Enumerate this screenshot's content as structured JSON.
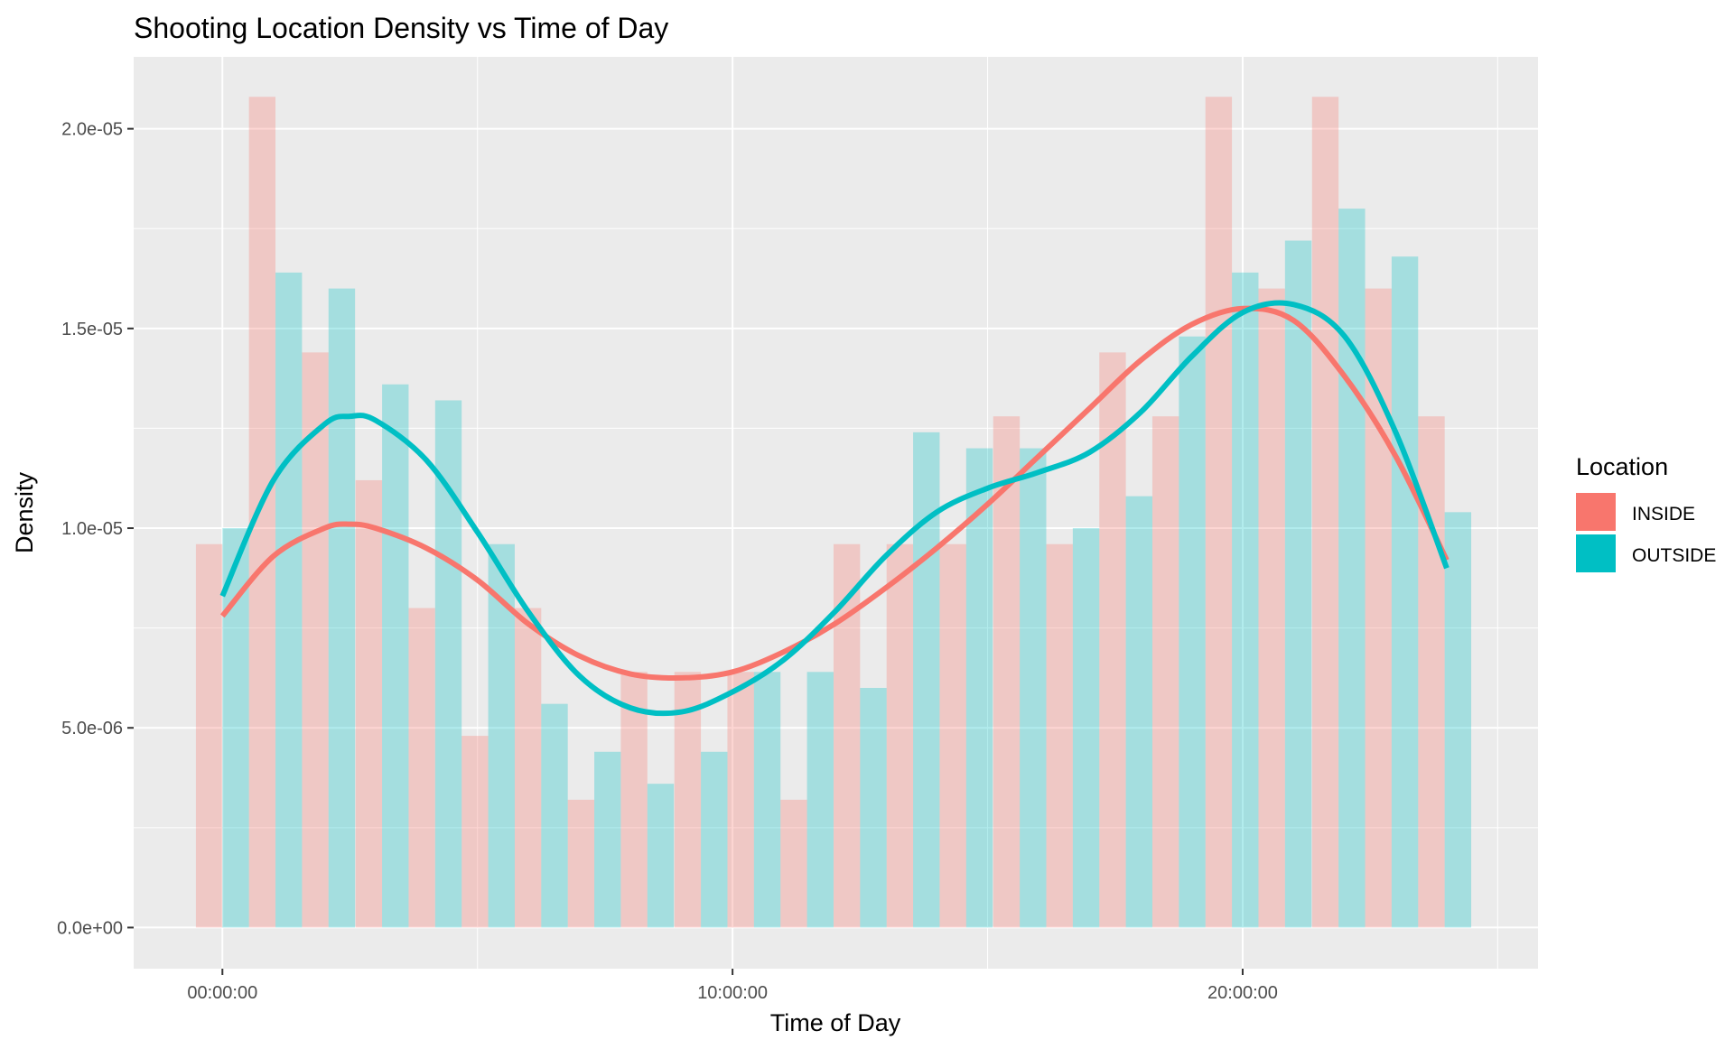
{
  "chart_data": {
    "type": "bar",
    "title": "Shooting Location Density vs Time of Day",
    "xlabel": "Time of Day",
    "ylabel": "Density",
    "xlim": [
      -1.74,
      25.79
    ],
    "ylim": [
      -1.03e-06,
      2.18e-05
    ],
    "x_ticks": [
      {
        "value": 0,
        "label": "00:00:00"
      },
      {
        "value": 10,
        "label": "10:00:00"
      },
      {
        "value": 20,
        "label": "20:00:00"
      }
    ],
    "x_minor_ticks": [
      5,
      15,
      25
    ],
    "y_ticks": [
      {
        "value": 0,
        "label": "0.0e+00"
      },
      {
        "value": 5e-06,
        "label": "5.0e-06"
      },
      {
        "value": 1e-05,
        "label": "1.0e-05"
      },
      {
        "value": 1.5e-05,
        "label": "1.5e-05"
      },
      {
        "value": 2e-05,
        "label": "2.0e-05"
      }
    ],
    "y_minor_ticks": [
      2.5e-06,
      7.5e-06,
      1.25e-05,
      1.75e-05
    ],
    "grid": true,
    "legend_title": "Location",
    "legend_position": "right",
    "bar_centers": [
      0,
      1.04,
      2.08,
      3.13,
      4.17,
      5.21,
      6.25,
      7.29,
      8.33,
      9.38,
      10.42,
      11.46,
      12.5,
      13.54,
      14.58,
      15.63,
      16.67,
      17.71,
      18.75,
      19.79,
      20.83,
      21.88,
      22.92,
      23.96
    ],
    "bar_width": 1.04,
    "series": [
      {
        "name": "INSIDE",
        "color": "#F8766D",
        "bar_color": "#F8766D",
        "values": [
          9.6e-06,
          2.08e-05,
          1.44e-05,
          1.12e-05,
          8e-06,
          4.8e-06,
          8e-06,
          3.2e-06,
          6.4e-06,
          6.4e-06,
          6.4e-06,
          3.2e-06,
          9.6e-06,
          9.6e-06,
          9.6e-06,
          1.28e-05,
          9.6e-06,
          1.44e-05,
          1.28e-05,
          2.08e-05,
          1.6e-05,
          2.08e-05,
          1.6e-05,
          1.28e-05
        ],
        "curve": {
          "x": [
            0,
            1,
            2,
            2.5,
            3,
            4,
            5,
            6,
            7,
            8,
            9,
            10,
            11,
            12,
            13,
            14,
            15,
            16,
            17,
            18,
            19,
            20,
            21,
            22,
            23,
            24
          ],
          "y": [
            7.8e-06,
            9.3e-06,
            1e-05,
            1.01e-05,
            1e-05,
            9.5e-06,
            8.7e-06,
            7.6e-06,
            6.8e-06,
            6.35e-06,
            6.25e-06,
            6.4e-06,
            6.9e-06,
            7.6e-06,
            8.5e-06,
            9.5e-06,
            1.06e-05,
            1.18e-05,
            1.3e-05,
            1.42e-05,
            1.51e-05,
            1.55e-05,
            1.52e-05,
            1.38e-05,
            1.18e-05,
            9.2e-06
          ]
        }
      },
      {
        "name": "OUTSIDE",
        "color": "#00BFC4",
        "bar_color": "#00BFC4",
        "values": [
          1e-05,
          1.64e-05,
          1.6e-05,
          1.36e-05,
          1.32e-05,
          9.6e-06,
          5.6e-06,
          4.4e-06,
          3.6e-06,
          4.4e-06,
          6.4e-06,
          6.4e-06,
          6e-06,
          1.24e-05,
          1.2e-05,
          1.2e-05,
          1e-05,
          1.08e-05,
          1.48e-05,
          1.64e-05,
          1.72e-05,
          1.8e-05,
          1.68e-05,
          1.04e-05
        ],
        "curve": {
          "x": [
            0,
            1,
            2,
            2.5,
            3,
            4,
            5,
            6,
            7,
            8,
            9,
            10,
            11,
            12,
            13,
            14,
            15,
            16,
            17,
            18,
            19,
            20,
            21,
            22,
            23,
            24
          ],
          "y": [
            8.3e-06,
            1.12e-05,
            1.26e-05,
            1.28e-05,
            1.27e-05,
            1.17e-05,
            9.9e-06,
            7.9e-06,
            6.3e-06,
            5.5e-06,
            5.4e-06,
            5.9e-06,
            6.7e-06,
            7.9e-06,
            9.3e-06,
            1.04e-05,
            1.1e-05,
            1.14e-05,
            1.19e-05,
            1.29e-05,
            1.43e-05,
            1.54e-05,
            1.56e-05,
            1.48e-05,
            1.24e-05,
            9e-06
          ]
        }
      }
    ]
  }
}
